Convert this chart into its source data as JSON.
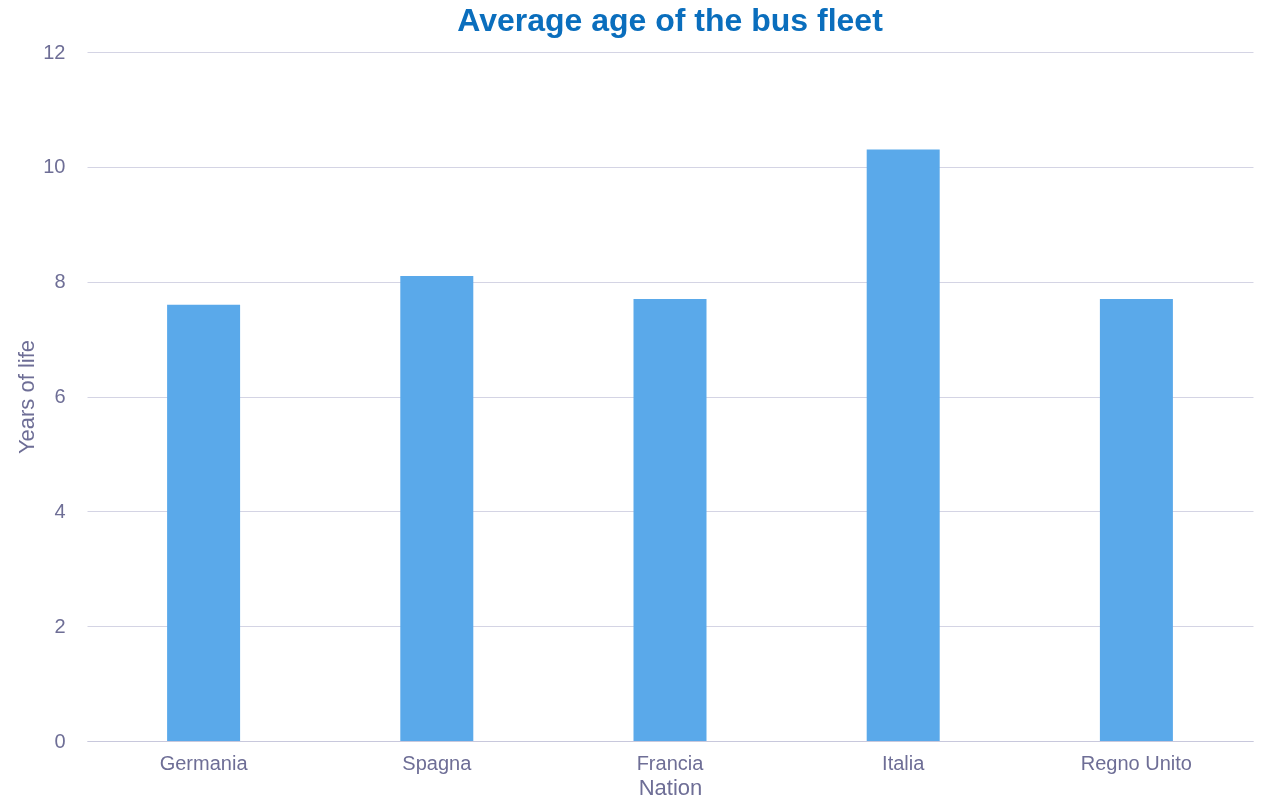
{
  "chart_data": {
    "type": "bar",
    "title": "Average age of the bus fleet",
    "xlabel": "Nation",
    "ylabel": "Years of life",
    "categories": [
      "Germania",
      "Spagna",
      "Francia",
      "Italia",
      "Regno Unito"
    ],
    "values": [
      7.6,
      8.1,
      7.7,
      10.3,
      7.7
    ],
    "color": "#5aa9ea",
    "ylim": [
      0,
      12
    ],
    "yticks": [
      0,
      2,
      4,
      6,
      8,
      10,
      12
    ],
    "grid": "y"
  }
}
